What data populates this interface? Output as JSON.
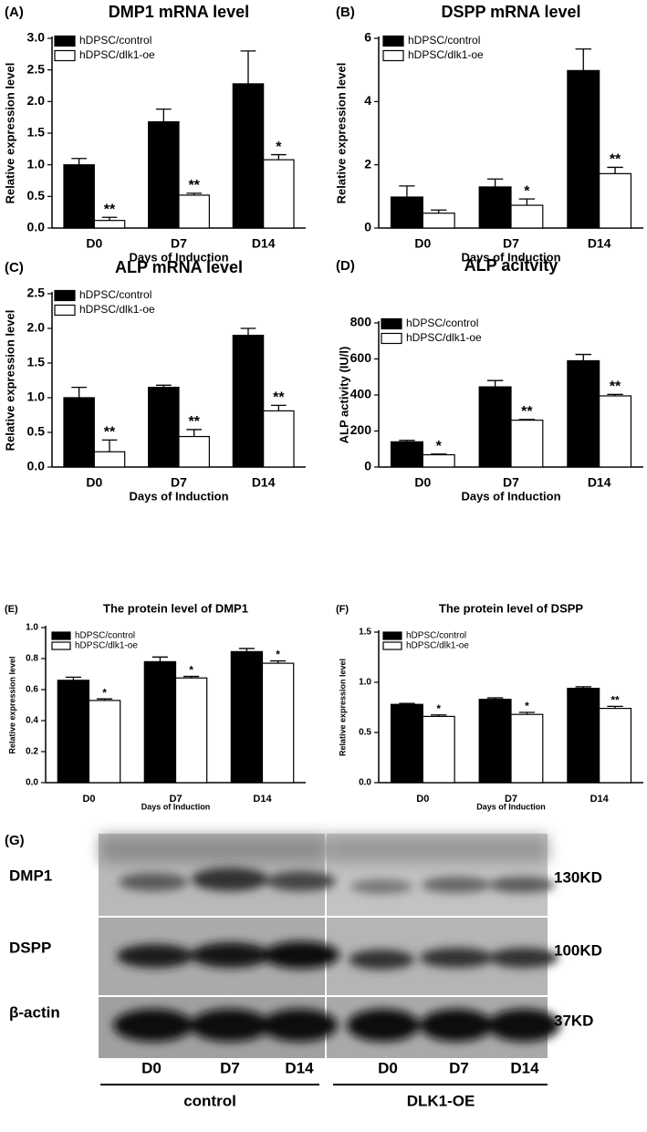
{
  "chart_data": [
    {
      "type": "bar",
      "label": "(A)",
      "title": "DMP1 mRNA level",
      "y_label": "Relative expression level",
      "x_label": "Days of Induction",
      "categories": [
        "D0",
        "D7",
        "D14"
      ],
      "series": [
        {
          "name": "hDPSC/control",
          "color": "#000000",
          "values": [
            1.0,
            1.68,
            2.28
          ],
          "errors": [
            0.1,
            0.2,
            0.52
          ],
          "significance": [
            null,
            null,
            null
          ]
        },
        {
          "name": "hDPSC/dlk1-oe",
          "color": "#ffffff",
          "values": [
            0.12,
            0.52,
            1.08
          ],
          "errors": [
            0.05,
            0.03,
            0.08
          ],
          "significance": [
            "**",
            "**",
            "*"
          ]
        }
      ],
      "ylim": [
        0,
        3
      ],
      "yticks": [
        {
          "value": 0,
          "label": "0.0"
        },
        0.5,
        {
          "value": 1,
          "label": "1.0"
        },
        1.5,
        {
          "value": 2,
          "label": "2.0"
        },
        2.5,
        {
          "value": 3,
          "label": "3.0"
        }
      ],
      "legend": "upper left"
    },
    {
      "type": "bar",
      "label": "(B)",
      "title": "DSPP mRNA level",
      "y_label": "Relative expression level",
      "x_label": "Days of Induction",
      "categories": [
        "D0",
        "D7",
        "D14"
      ],
      "series": [
        {
          "name": "hDPSC/control",
          "color": "#000000",
          "values": [
            0.98,
            1.3,
            4.98
          ],
          "errors": [
            0.35,
            0.25,
            0.68
          ],
          "significance": [
            null,
            null,
            null
          ]
        },
        {
          "name": "hDPSC/dlk1-oe",
          "color": "#ffffff",
          "values": [
            0.47,
            0.72,
            1.72
          ],
          "errors": [
            0.1,
            0.2,
            0.2
          ],
          "significance": [
            null,
            "*",
            "**"
          ]
        }
      ],
      "ylim": [
        0,
        6
      ],
      "yticks": [
        0,
        2,
        4,
        6
      ],
      "legend": "upper left"
    },
    {
      "type": "bar",
      "label": "(C)",
      "title": "ALP mRNA level",
      "y_label": "Relative expression level",
      "x_label": "Days of Induction",
      "categories": [
        "D0",
        "D7",
        "D14"
      ],
      "series": [
        {
          "name": "hDPSC/control",
          "color": "#000000",
          "values": [
            1.0,
            1.15,
            1.9
          ],
          "errors": [
            0.15,
            0.03,
            0.1
          ],
          "significance": [
            null,
            null,
            null
          ]
        },
        {
          "name": "hDPSC/dlk1-oe",
          "color": "#ffffff",
          "values": [
            0.22,
            0.44,
            0.81
          ],
          "errors": [
            0.17,
            0.1,
            0.08
          ],
          "significance": [
            "**",
            "**",
            "**"
          ]
        }
      ],
      "ylim": [
        0,
        2.5
      ],
      "yticks": [
        {
          "value": 0,
          "label": "0.0"
        },
        0.5,
        {
          "value": 1,
          "label": "1.0"
        },
        1.5,
        {
          "value": 2,
          "label": "2.0"
        },
        2.5
      ],
      "legend": "upper left"
    },
    {
      "type": "bar",
      "label": "(D)",
      "title": "ALP acitvity",
      "y_label": "ALP activity (IU/l)",
      "x_label": "Days of Induction",
      "categories": [
        "D0",
        "D7",
        "D14"
      ],
      "series": [
        {
          "name": "hDPSC/control",
          "color": "#000000",
          "values": [
            140,
            445,
            590
          ],
          "errors": [
            8,
            35,
            35
          ],
          "significance": [
            null,
            null,
            null
          ]
        },
        {
          "name": "hDPSC/dlk1-oe",
          "color": "#ffffff",
          "values": [
            68,
            260,
            395
          ],
          "errors": [
            4,
            4,
            8
          ],
          "significance": [
            "*",
            "**",
            "**"
          ]
        }
      ],
      "ylim": [
        0,
        800
      ],
      "yticks": [
        0,
        200,
        400,
        600,
        800
      ],
      "legend": "upper left"
    },
    {
      "type": "bar",
      "label": "(E)",
      "title": "The protein level of DMP1",
      "y_label": "Relative expression level",
      "x_label": "Days of Induction",
      "categories": [
        "D0",
        "D7",
        "D14"
      ],
      "series": [
        {
          "name": "hDPSC/control",
          "color": "#000000",
          "values": [
            0.66,
            0.78,
            0.845
          ],
          "errors": [
            0.02,
            0.03,
            0.02
          ],
          "significance": [
            null,
            null,
            null
          ]
        },
        {
          "name": "hDPSC/dlk1-oe",
          "color": "#ffffff",
          "values": [
            0.53,
            0.675,
            0.77
          ],
          "errors": [
            0.01,
            0.01,
            0.015
          ],
          "significance": [
            "*",
            "*",
            "*"
          ]
        }
      ],
      "ylim": [
        0,
        1
      ],
      "yticks": [
        {
          "value": 0,
          "label": "0.0"
        },
        0.2,
        0.4,
        0.6,
        0.8,
        {
          "value": 1,
          "label": "1.0"
        }
      ],
      "legend": "upper left"
    },
    {
      "type": "bar",
      "label": "(F)",
      "title": "The protein level of DSPP",
      "y_label": "Relative expression level",
      "x_label": "Days of Induction",
      "categories": [
        "D0",
        "D7",
        "D14"
      ],
      "series": [
        {
          "name": "hDPSC/control",
          "color": "#000000",
          "values": [
            0.78,
            0.83,
            0.94
          ],
          "errors": [
            0.01,
            0.015,
            0.015
          ],
          "significance": [
            null,
            null,
            null
          ]
        },
        {
          "name": "hDPSC/dlk1-oe",
          "color": "#ffffff",
          "values": [
            0.66,
            0.68,
            0.74
          ],
          "errors": [
            0.015,
            0.02,
            0.02
          ],
          "significance": [
            "*",
            "*",
            "**"
          ]
        }
      ],
      "ylim": [
        0,
        1.5
      ],
      "yticks": [
        {
          "value": 0,
          "label": "0.0"
        },
        0.5,
        {
          "value": 1,
          "label": "1.0"
        },
        1.5
      ],
      "legend": "upper left"
    }
  ],
  "blot": {
    "label": "(G)",
    "proteins": [
      "DMP1",
      "DSPP",
      "β-actin"
    ],
    "sizes": [
      "130KD",
      "100KD",
      "37KD"
    ],
    "lanes": [
      "D0",
      "D7",
      "D14",
      "D0",
      "D7",
      "D14"
    ],
    "groups": [
      "control",
      "DLK1-OE"
    ]
  }
}
